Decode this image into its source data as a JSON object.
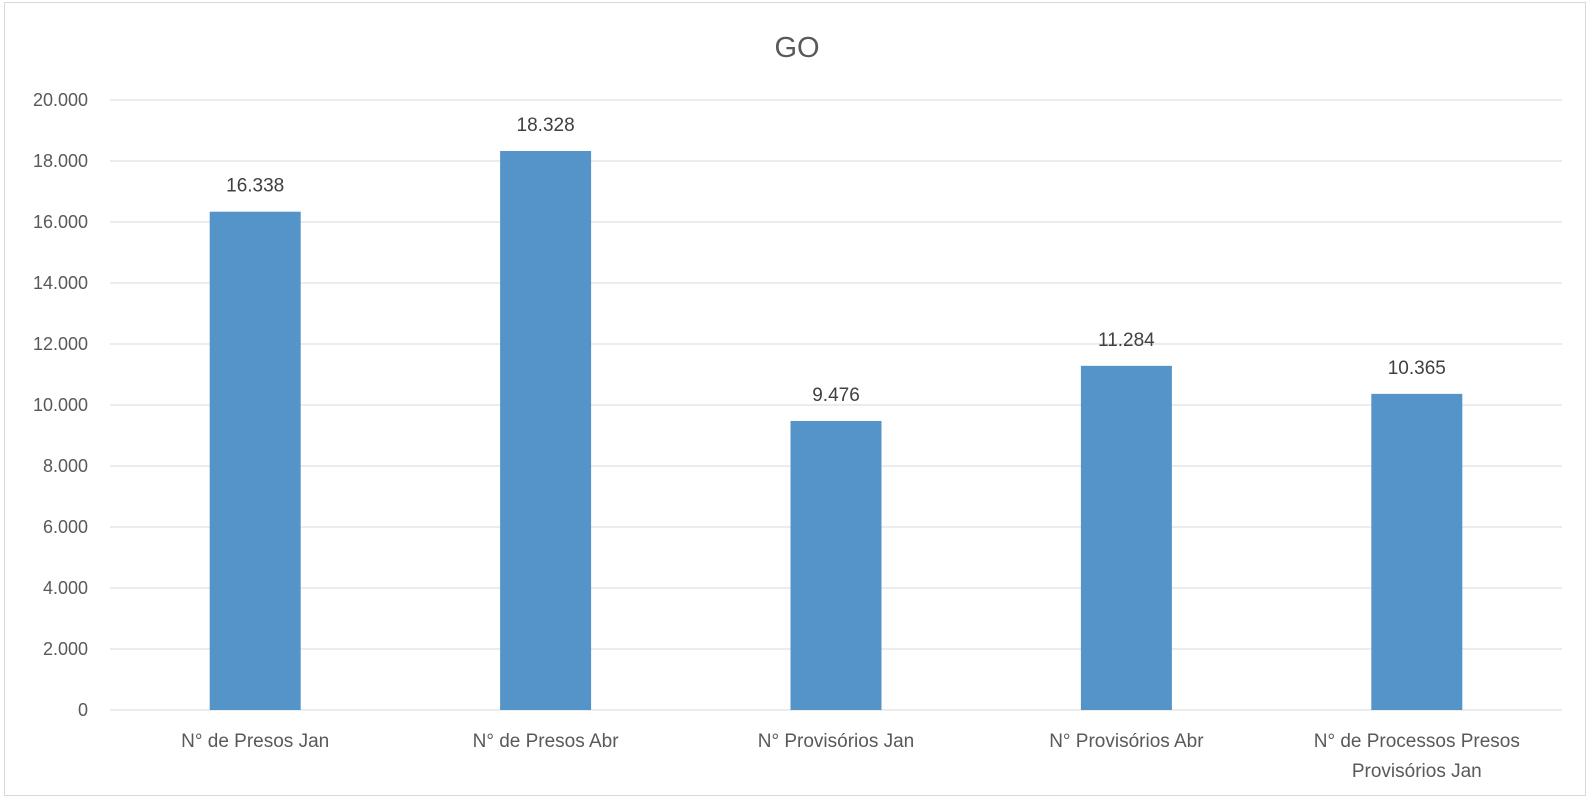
{
  "chart_data": {
    "type": "bar",
    "title": "GO",
    "xlabel": "",
    "ylabel": "",
    "categories": [
      [
        "N° de Presos Jan"
      ],
      [
        "N° de Presos Abr"
      ],
      [
        "N° Provisórios Jan"
      ],
      [
        "N° Provisórios Abr"
      ],
      [
        "N° de Processos Presos",
        "Provisórios Jan"
      ]
    ],
    "values": [
      16338,
      18328,
      9476,
      11284,
      10365
    ],
    "value_labels": [
      "16.338",
      "18.328",
      "9.476",
      "11.284",
      "10.365"
    ],
    "ylim": [
      0,
      20000
    ],
    "yticks": [
      0,
      2000,
      4000,
      6000,
      8000,
      10000,
      12000,
      14000,
      16000,
      18000,
      20000
    ],
    "ytick_labels": [
      "0",
      "2.000",
      "4.000",
      "6.000",
      "8.000",
      "10.000",
      "12.000",
      "14.000",
      "16.000",
      "18.000",
      "20.000"
    ],
    "bar_color": "#5594c8",
    "grid": true,
    "legend": "none"
  }
}
